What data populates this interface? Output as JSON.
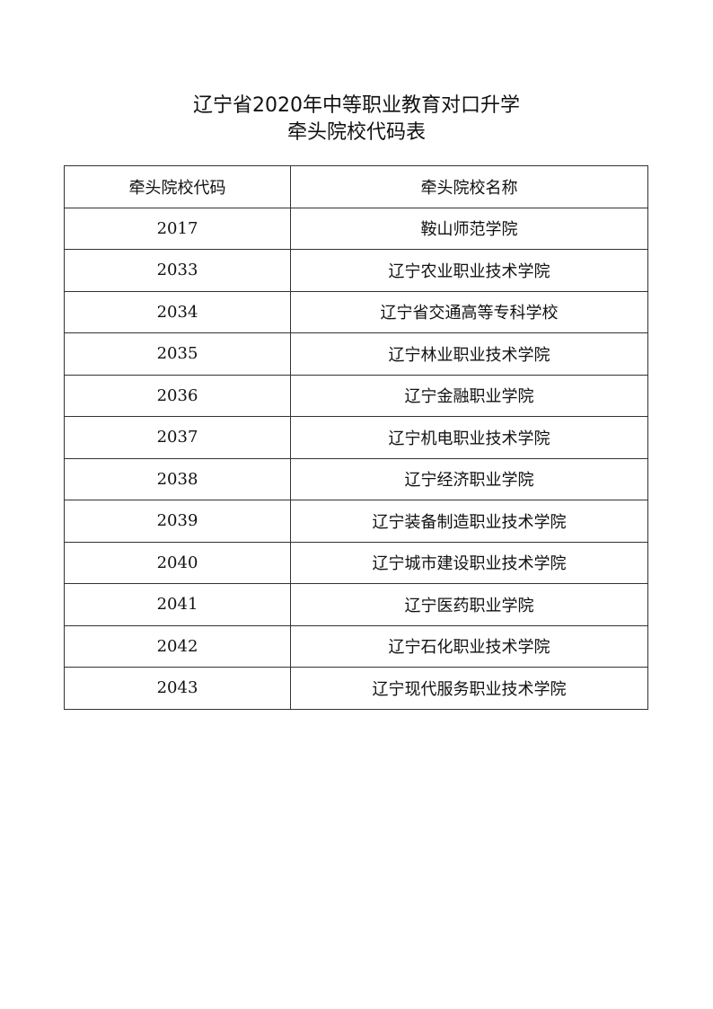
{
  "title": {
    "line1": "辽宁省2020年中等职业教育对口升学",
    "line2": "牵头院校代码表"
  },
  "table": {
    "headers": [
      "牵头院校代码",
      "牵头院校名称"
    ],
    "rows": [
      [
        "2017",
        "鞍山师范学院"
      ],
      [
        "2033",
        "辽宁农业职业技术学院"
      ],
      [
        "2034",
        "辽宁省交通高等专科学校"
      ],
      [
        "2035",
        "辽宁林业职业技术学院"
      ],
      [
        "2036",
        "辽宁金融职业学院"
      ],
      [
        "2037",
        "辽宁机电职业技术学院"
      ],
      [
        "2038",
        "辽宁经济职业学院"
      ],
      [
        "2039",
        "辽宁装备制造职业技术学院"
      ],
      [
        "2040",
        "辽宁城市建设职业技术学院"
      ],
      [
        "2041",
        "辽宁医药职业学院"
      ],
      [
        "2042",
        "辽宁石化职业技术学院"
      ],
      [
        "2043",
        "辽宁现代服务职业技术学院"
      ]
    ]
  }
}
